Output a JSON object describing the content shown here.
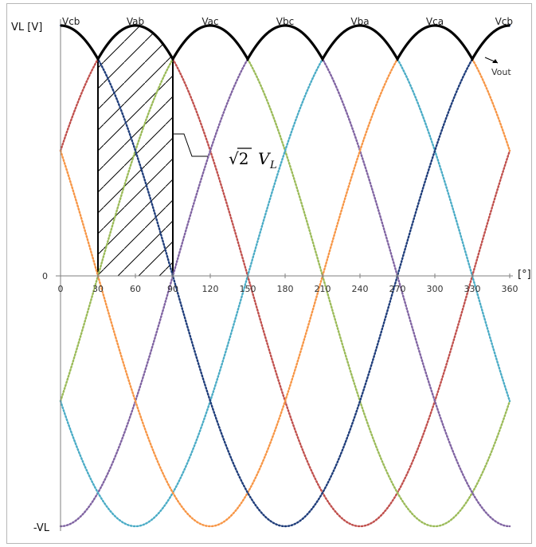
{
  "chart_data": {
    "type": "line",
    "xlabel": "[°]",
    "ylabel": "VL [V]",
    "xlim": [
      0,
      360
    ],
    "ylim": [
      -1,
      1
    ],
    "x_ticks": [
      "0",
      "30",
      "60",
      "90",
      "120",
      "150",
      "180",
      "210",
      "240",
      "270",
      "300",
      "330",
      "360"
    ],
    "y_ticks": [
      "-VL",
      "0"
    ],
    "phase_labels": [
      {
        "text": "Vcb",
        "at": 0
      },
      {
        "text": "Vab",
        "at": 60
      },
      {
        "text": "Vac",
        "at": 120
      },
      {
        "text": "Vbc",
        "at": 180
      },
      {
        "text": "Vba",
        "at": 240
      },
      {
        "text": "Vca",
        "at": 300
      },
      {
        "text": "Vcb",
        "at": 360
      }
    ],
    "annotation_vout": "Vout",
    "annotation_peak": {
      "radical": "√2",
      "symbol": "V",
      "subscript": "L"
    },
    "shaded_region": [
      30,
      90
    ],
    "series": [
      {
        "phase_deg": 60,
        "color": "#c0504d"
      },
      {
        "phase_deg": 120,
        "color": "#9bbb59"
      },
      {
        "phase_deg": 180,
        "color": "#8064a2"
      },
      {
        "phase_deg": 240,
        "color": "#4bacc6"
      },
      {
        "phase_deg": 300,
        "color": "#f79646"
      },
      {
        "phase_deg": 0,
        "color": "#1f3d7a"
      }
    ],
    "envelope_color": "#000000"
  }
}
